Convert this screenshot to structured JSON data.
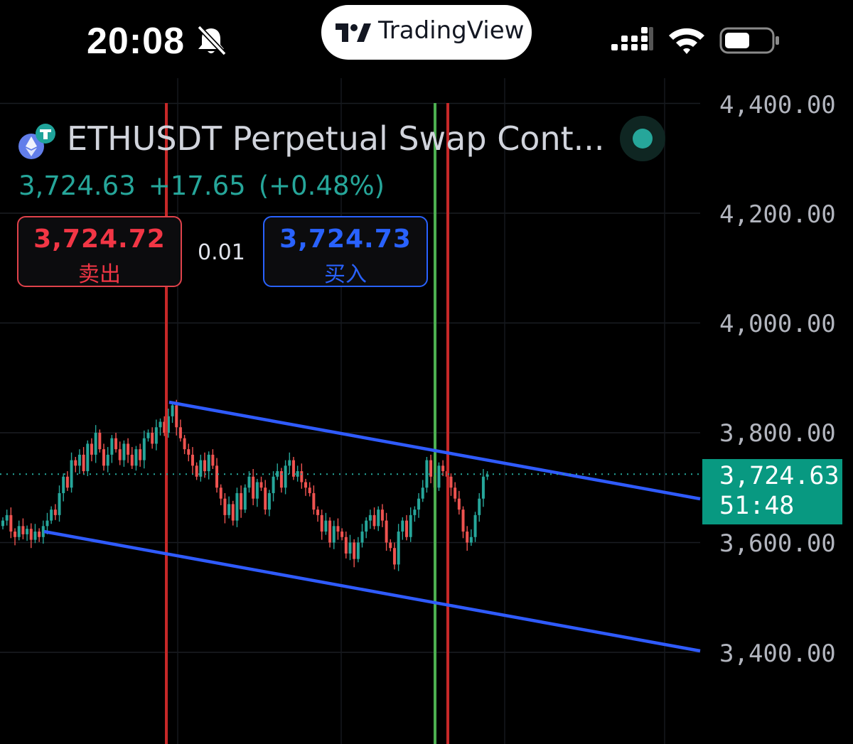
{
  "status_bar": {
    "time": "20:08",
    "app_pill": "TradingView"
  },
  "symbol": {
    "name": "ETHUSDT Perpetual Swap Cont...",
    "last_price": "3,724.63",
    "change": "+17.65",
    "change_pct": "(+0.48%)"
  },
  "trade": {
    "sell_price": "3,724.72",
    "sell_label": "卖出",
    "spread": "0.01",
    "buy_price": "3,724.73",
    "buy_label": "买入"
  },
  "price_tag": {
    "value": "3,724.63",
    "countdown": "51:48"
  },
  "colors": {
    "up": "#26a69a",
    "down": "#ef5350",
    "sell": "#f23645",
    "buy": "#2962ff",
    "channel": "#2f5bff",
    "marker_red": "#c62828",
    "marker_green": "#4caf50"
  },
  "chart_data": {
    "type": "candlestick",
    "y_ticks": [
      "4,400.00",
      "4,200.00",
      "4,000.00",
      "3,800.00",
      "3,600.00",
      "3,400.00"
    ],
    "y_tick_values": [
      4400,
      4200,
      4000,
      3800,
      3600,
      3400
    ],
    "current_price": 3724.63,
    "grid": true,
    "closes": [
      3640,
      3650,
      3620,
      3610,
      3630,
      3615,
      3625,
      3605,
      3620,
      3610,
      3630,
      3640,
      3660,
      3650,
      3690,
      3720,
      3700,
      3750,
      3740,
      3760,
      3730,
      3780,
      3760,
      3800,
      3770,
      3740,
      3760,
      3790,
      3770,
      3750,
      3780,
      3760,
      3740,
      3770,
      3750,
      3790,
      3800,
      3780,
      3810,
      3820,
      3800,
      3830,
      3850,
      3810,
      3790,
      3770,
      3760,
      3740,
      3720,
      3750,
      3730,
      3760,
      3740,
      3700,
      3680,
      3650,
      3670,
      3640,
      3690,
      3660,
      3700,
      3720,
      3680,
      3710,
      3700,
      3660,
      3690,
      3720,
      3730,
      3700,
      3740,
      3750,
      3720,
      3730,
      3710,
      3700,
      3690,
      3660,
      3650,
      3620,
      3640,
      3600,
      3630,
      3620,
      3610,
      3580,
      3600,
      3570,
      3600,
      3620,
      3640,
      3650,
      3630,
      3660,
      3640,
      3600,
      3590,
      3560,
      3620,
      3640,
      3610,
      3650,
      3660,
      3680,
      3700,
      3750,
      3720,
      3700,
      3740,
      3730,
      3720,
      3700,
      3680,
      3660,
      3620,
      3600,
      3610,
      3650,
      3680,
      3720,
      3724
    ]
  }
}
